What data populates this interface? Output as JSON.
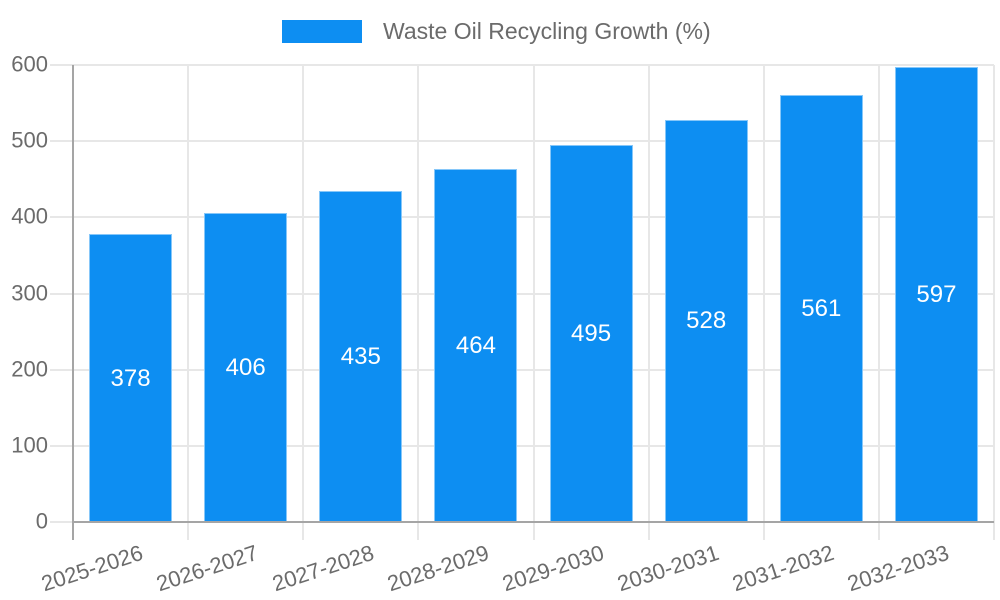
{
  "legend": {
    "label": "Waste Oil Recycling Growth (%)"
  },
  "chart_data": {
    "type": "bar",
    "title": "Waste Oil Recycling Growth (%)",
    "categories": [
      "2025-2026",
      "2026-2027",
      "2027-2028",
      "2028-2029",
      "2029-2030",
      "2030-2031",
      "2031-2032",
      "2032-2033"
    ],
    "values": [
      378,
      406,
      435,
      464,
      495,
      528,
      561,
      597
    ],
    "value_labels": [
      "378",
      "406",
      "435",
      "464",
      "495",
      "528",
      "561",
      "597"
    ],
    "xlabel": "",
    "ylabel": "",
    "ylim": [
      0,
      600
    ],
    "yticks": [
      0,
      100,
      200,
      300,
      400,
      500,
      600
    ],
    "grid": true,
    "legend_position": "top-center",
    "value_label_position": "center-of-bar"
  },
  "colors": {
    "bar": "#0d8ef2",
    "bar_edge": "rgba(255,255,255,0.5)",
    "value_text": "#ffffff",
    "axis_text": "#6b6b6b",
    "grid_line": "#e7e7e7",
    "axis_line": "#a5a5a5",
    "background": "#ffffff"
  }
}
